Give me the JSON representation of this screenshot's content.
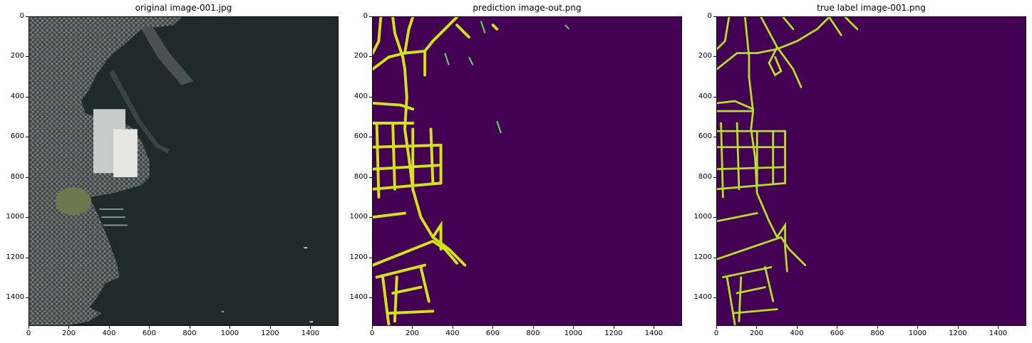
{
  "figure": {
    "panels": [
      {
        "id": "original",
        "title": "original image-001.jpg",
        "kind": "photo"
      },
      {
        "id": "prediction",
        "title": "prediction image-out.png",
        "kind": "mask"
      },
      {
        "id": "truth",
        "title": "true label image-001.png",
        "kind": "mask"
      }
    ],
    "axis": {
      "x_ticks": [
        "0",
        "200",
        "400",
        "600",
        "800",
        "1000",
        "1200",
        "1400"
      ],
      "y_ticks": [
        "0",
        "200",
        "400",
        "600",
        "800",
        "1000",
        "1200",
        "1400"
      ],
      "x_tick_values": [
        0,
        200,
        400,
        600,
        800,
        1000,
        1200,
        1400
      ],
      "y_tick_values": [
        0,
        200,
        400,
        600,
        800,
        1000,
        1200,
        1400
      ],
      "range": [
        0,
        1540
      ]
    },
    "colors": {
      "mask_background": "#440154",
      "mask_road": "#d2e21b",
      "mask_road_truth": "#b5de2b",
      "water": "#1f2b2a",
      "urban": "#4a4f4f"
    }
  }
}
